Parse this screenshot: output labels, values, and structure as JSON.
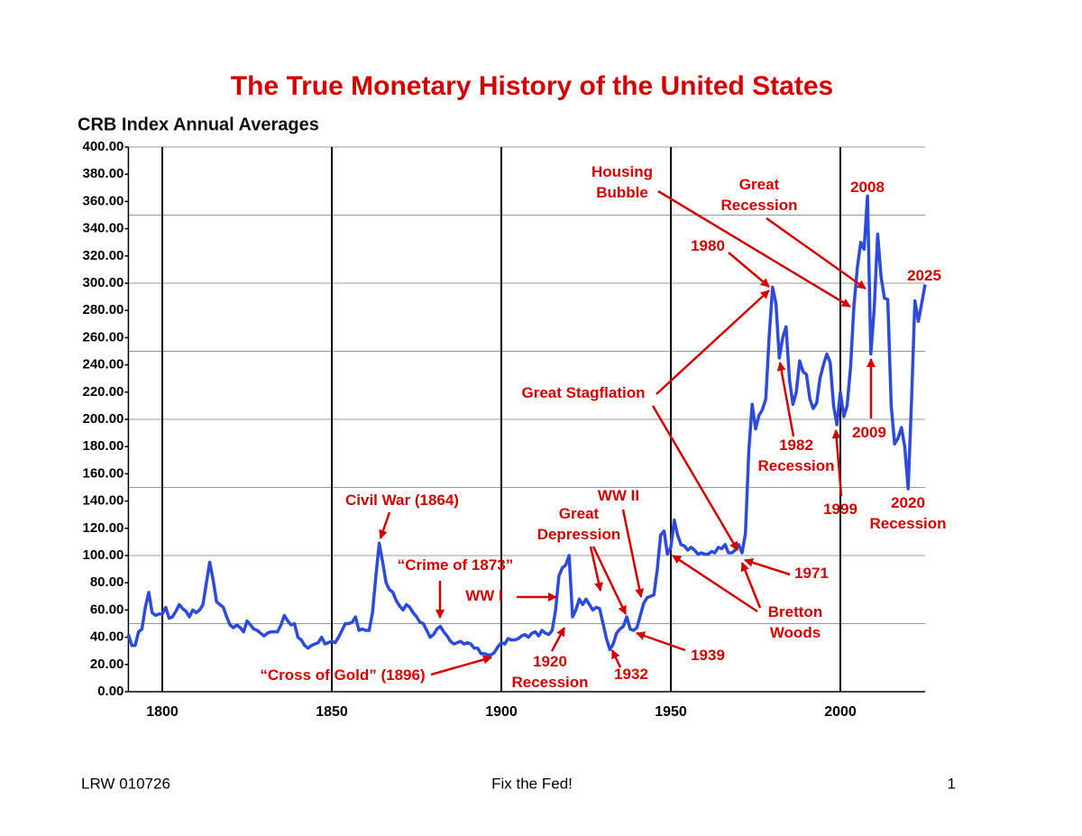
{
  "chart_data": {
    "type": "line",
    "title": "The True Monetary History of the United States",
    "subtitle": "CRB Index Annual Averages",
    "xlim": [
      1790,
      2025
    ],
    "xticks": [
      1800,
      1850,
      1900,
      1950,
      2000
    ],
    "ylim": [
      0,
      400
    ],
    "yticks": [
      {
        "value": 0,
        "label": "0.00"
      },
      {
        "value": 20,
        "label": "20.00"
      },
      {
        "value": 40,
        "label": "40.00"
      },
      {
        "value": 60,
        "label": "60.00"
      },
      {
        "value": 80,
        "label": "80.00"
      },
      {
        "value": 100,
        "label": "100.00"
      },
      {
        "value": 120,
        "label": "120.00"
      },
      {
        "value": 140,
        "label": "140.00"
      },
      {
        "value": 160,
        "label": "160.00"
      },
      {
        "value": 180,
        "label": "180.00"
      },
      {
        "value": 200,
        "label": "200.00"
      },
      {
        "value": 220,
        "label": "220.00"
      },
      {
        "value": 240,
        "label": "240.00"
      },
      {
        "value": 260,
        "label": "260.00"
      },
      {
        "value": 280,
        "label": "280.00"
      },
      {
        "value": 300,
        "label": "300.00"
      },
      {
        "value": 320,
        "label": "320.00"
      },
      {
        "value": 340,
        "label": "340.00"
      },
      {
        "value": 360,
        "label": "360.00"
      },
      {
        "value": 380,
        "label": "380.00"
      },
      {
        "value": 400,
        "label": "400.00"
      }
    ],
    "ygrid": [
      50,
      100,
      150,
      200,
      250,
      300,
      350,
      400
    ],
    "grid": true,
    "x": [
      1790,
      1791,
      1792,
      1793,
      1794,
      1795,
      1796,
      1797,
      1798,
      1799,
      1800,
      1801,
      1802,
      1803,
      1804,
      1805,
      1806,
      1807,
      1808,
      1809,
      1810,
      1811,
      1812,
      1813,
      1814,
      1815,
      1816,
      1817,
      1818,
      1819,
      1820,
      1821,
      1822,
      1823,
      1824,
      1825,
      1826,
      1827,
      1828,
      1829,
      1830,
      1831,
      1832,
      1833,
      1834,
      1835,
      1836,
      1837,
      1838,
      1839,
      1840,
      1841,
      1842,
      1843,
      1844,
      1845,
      1846,
      1847,
      1848,
      1849,
      1850,
      1851,
      1852,
      1853,
      1854,
      1855,
      1856,
      1857,
      1858,
      1859,
      1860,
      1861,
      1862,
      1863,
      1864,
      1865,
      1866,
      1867,
      1868,
      1869,
      1870,
      1871,
      1872,
      1873,
      1874,
      1875,
      1876,
      1877,
      1878,
      1879,
      1880,
      1881,
      1882,
      1883,
      1884,
      1885,
      1886,
      1887,
      1888,
      1889,
      1890,
      1891,
      1892,
      1893,
      1894,
      1895,
      1896,
      1897,
      1898,
      1899,
      1900,
      1901,
      1902,
      1903,
      1904,
      1905,
      1906,
      1907,
      1908,
      1909,
      1910,
      1911,
      1912,
      1913,
      1914,
      1915,
      1916,
      1917,
      1918,
      1919,
      1920,
      1921,
      1922,
      1923,
      1924,
      1925,
      1926,
      1927,
      1928,
      1929,
      1930,
      1931,
      1932,
      1933,
      1934,
      1935,
      1936,
      1937,
      1938,
      1939,
      1940,
      1941,
      1942,
      1943,
      1944,
      1945,
      1946,
      1947,
      1948,
      1949,
      1950,
      1951,
      1952,
      1953,
      1954,
      1955,
      1956,
      1957,
      1958,
      1959,
      1960,
      1961,
      1962,
      1963,
      1964,
      1965,
      1966,
      1967,
      1968,
      1969,
      1970,
      1971,
      1972,
      1973,
      1974,
      1975,
      1976,
      1977,
      1978,
      1979,
      1980,
      1981,
      1982,
      1983,
      1984,
      1985,
      1986,
      1987,
      1988,
      1989,
      1990,
      1991,
      1992,
      1993,
      1994,
      1995,
      1996,
      1997,
      1998,
      1999,
      2000,
      2001,
      2002,
      2003,
      2004,
      2005,
      2006,
      2007,
      2008,
      2009,
      2010,
      2011,
      2012,
      2013,
      2014,
      2015,
      2016,
      2017,
      2018,
      2019,
      2020,
      2021,
      2022,
      2023,
      2024,
      2025
    ],
    "series": [
      {
        "name": "CRB Index",
        "color": "#2d4bdb",
        "values": [
          42,
          34,
          34,
          44,
          46,
          62,
          73,
          58,
          56,
          57,
          57,
          62,
          54,
          55,
          59,
          64,
          61,
          59,
          55,
          60,
          58,
          60,
          64,
          80,
          95,
          82,
          66,
          64,
          62,
          55,
          49,
          47,
          49,
          47,
          44,
          52,
          49,
          46,
          45,
          43,
          41,
          43,
          44,
          44,
          44,
          49,
          56,
          52,
          49,
          50,
          40,
          38,
          34,
          32,
          34,
          35,
          36,
          40,
          35,
          36,
          37,
          36,
          40,
          45,
          50,
          50,
          51,
          55,
          45,
          46,
          45,
          45,
          58,
          85,
          109,
          95,
          80,
          75,
          73,
          67,
          63,
          60,
          64,
          62,
          58,
          55,
          51,
          50,
          45,
          40,
          42,
          46,
          48,
          44,
          41,
          37,
          35,
          36,
          37,
          35,
          36,
          35,
          32,
          32,
          28,
          28,
          27,
          27,
          29,
          33,
          36,
          35,
          39,
          38,
          38,
          39,
          41,
          42,
          40,
          43,
          44,
          41,
          45,
          43,
          42,
          45,
          60,
          85,
          91,
          93,
          100,
          55,
          60,
          68,
          64,
          68,
          64,
          60,
          62,
          61,
          50,
          39,
          31,
          35,
          43,
          46,
          48,
          55,
          46,
          45,
          47,
          56,
          65,
          69,
          70,
          71,
          90,
          115,
          118,
          101,
          106,
          126,
          115,
          108,
          107,
          104,
          106,
          104,
          101,
          102,
          101,
          101,
          103,
          102,
          106,
          105,
          108,
          102,
          102,
          104,
          108,
          102,
          116,
          177,
          211,
          193,
          203,
          207,
          215,
          260,
          297,
          285,
          245,
          260,
          268,
          229,
          211,
          220,
          243,
          235,
          233,
          215,
          208,
          212,
          230,
          240,
          248,
          242,
          210,
          196,
          220,
          202,
          210,
          238,
          283,
          311,
          330,
          325,
          364,
          248,
          282,
          336,
          305,
          289,
          288,
          210,
          182,
          186,
          194,
          180,
          149,
          215,
          287,
          272,
          285,
          299
        ]
      }
    ],
    "annotation_color": "#d40000",
    "annotations": [
      [
        "Housing",
        "Bubble"
      ],
      [
        "Great",
        "Recession"
      ],
      [
        "2008"
      ],
      [
        "1980"
      ],
      [
        "2025"
      ],
      [
        "Great Stagflation"
      ],
      [
        "1982",
        "Recession"
      ],
      [
        "2009"
      ],
      [
        "1999"
      ],
      [
        "2020",
        "Recession"
      ],
      [
        "Civil War (1864)"
      ],
      [
        "WW II"
      ],
      [
        "Great",
        "Depression"
      ],
      [
        "1971"
      ],
      [
        "“Crime of 1873”"
      ],
      [
        "WW I"
      ],
      [
        "Bretton",
        "Woods"
      ],
      [
        "1920",
        "Recession"
      ],
      [
        "1939"
      ],
      [
        "1932"
      ],
      [
        "“Cross of Gold” (1896)"
      ]
    ]
  },
  "footer": {
    "left": "LRW 010726",
    "center": "Fix the Fed!",
    "right": "1"
  }
}
